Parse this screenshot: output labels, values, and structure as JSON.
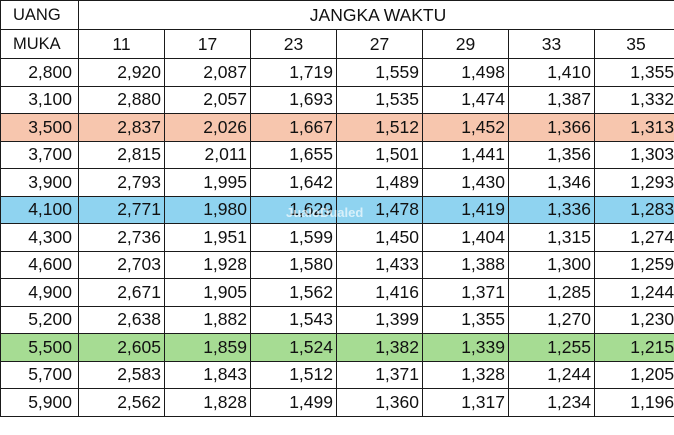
{
  "header": {
    "left_top": "UANG",
    "left_bottom": "MUKA",
    "group_title": "JANGKA WAKTU",
    "terms": [
      "11",
      "17",
      "23",
      "27",
      "29",
      "33",
      "35"
    ]
  },
  "rows": [
    {
      "dp": "2,800",
      "values": [
        "2,920",
        "2,087",
        "1,719",
        "1,559",
        "1,498",
        "1,410",
        "1,355"
      ],
      "highlight": ""
    },
    {
      "dp": "3,100",
      "values": [
        "2,880",
        "2,057",
        "1,693",
        "1,535",
        "1,474",
        "1,387",
        "1,332"
      ],
      "highlight": ""
    },
    {
      "dp": "3,500",
      "values": [
        "2,837",
        "2,026",
        "1,667",
        "1,512",
        "1,452",
        "1,366",
        "1,313"
      ],
      "highlight": "orange"
    },
    {
      "dp": "3,700",
      "values": [
        "2,815",
        "2,011",
        "1,655",
        "1,501",
        "1,441",
        "1,356",
        "1,303"
      ],
      "highlight": ""
    },
    {
      "dp": "3,900",
      "values": [
        "2,793",
        "1,995",
        "1,642",
        "1,489",
        "1,430",
        "1,346",
        "1,293"
      ],
      "highlight": ""
    },
    {
      "dp": "4,100",
      "values": [
        "2,771",
        "1,980",
        "1,629",
        "1,478",
        "1,419",
        "1,336",
        "1,283"
      ],
      "highlight": "blue"
    },
    {
      "dp": "4,300",
      "values": [
        "2,736",
        "1,951",
        "1,599",
        "1,450",
        "1,404",
        "1,315",
        "1,274"
      ],
      "highlight": ""
    },
    {
      "dp": "4,600",
      "values": [
        "2,703",
        "1,928",
        "1,580",
        "1,433",
        "1,388",
        "1,300",
        "1,259"
      ],
      "highlight": ""
    },
    {
      "dp": "4,900",
      "values": [
        "2,671",
        "1,905",
        "1,562",
        "1,416",
        "1,371",
        "1,285",
        "1,244"
      ],
      "highlight": ""
    },
    {
      "dp": "5,200",
      "values": [
        "2,638",
        "1,882",
        "1,543",
        "1,399",
        "1,355",
        "1,270",
        "1,230"
      ],
      "highlight": ""
    },
    {
      "dp": "5,500",
      "values": [
        "2,605",
        "1,859",
        "1,524",
        "1,382",
        "1,339",
        "1,255",
        "1,215"
      ],
      "highlight": "green"
    },
    {
      "dp": "5,700",
      "values": [
        "2,583",
        "1,843",
        "1,512",
        "1,371",
        "1,328",
        "1,244",
        "1,205"
      ],
      "highlight": ""
    },
    {
      "dp": "5,900",
      "values": [
        "2,562",
        "1,828",
        "1,499",
        "1,360",
        "1,317",
        "1,234",
        "1,196"
      ],
      "highlight": ""
    }
  ],
  "highlight_colors": {
    "orange": "#f7c6ae",
    "blue": "#8fd3f0",
    "green": "#a6dc93"
  },
  "watermark": "JualoDualed"
}
